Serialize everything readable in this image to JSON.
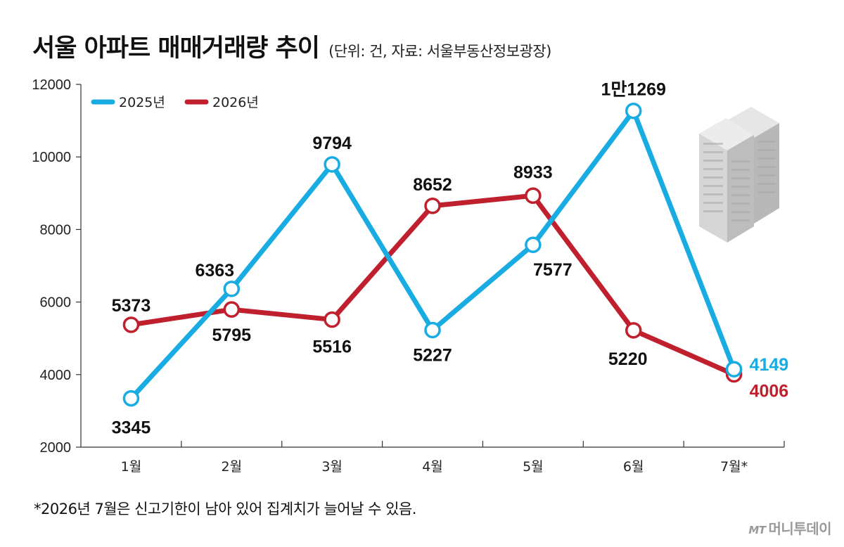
{
  "title": "서울 아파트 매매거래량 추이",
  "subtitle": "(단위: 건, 자료: 서울부동산정보광장)",
  "footnote": "*2026년 7월은 신고기한이 남아 있어 집계치가 늘어날 수 있음.",
  "logo": {
    "mark": "MT",
    "text": "머니투데이"
  },
  "chart_data": {
    "type": "line",
    "categories": [
      "1월",
      "2월",
      "3월",
      "4월",
      "5월",
      "6월",
      "7월*"
    ],
    "yticks": [
      2000,
      4000,
      6000,
      8000,
      10000,
      12000
    ],
    "ylim": [
      2000,
      12000
    ],
    "legend_position": "top-left",
    "grid": false,
    "series": [
      {
        "name": "2025년",
        "color": "#19ace2",
        "values": [
          3345,
          6363,
          9794,
          5227,
          7577,
          11269,
          4149
        ],
        "labels": [
          "3345",
          "6363",
          "9794",
          "5227",
          "7577",
          "1만1269",
          "4149"
        ]
      },
      {
        "name": "2026년",
        "color": "#c0202e",
        "values": [
          5373,
          5795,
          5516,
          8652,
          8933,
          5220,
          4006
        ],
        "labels": [
          "5373",
          "5795",
          "5516",
          "8652",
          "8933",
          "5220",
          "4006"
        ]
      }
    ]
  }
}
